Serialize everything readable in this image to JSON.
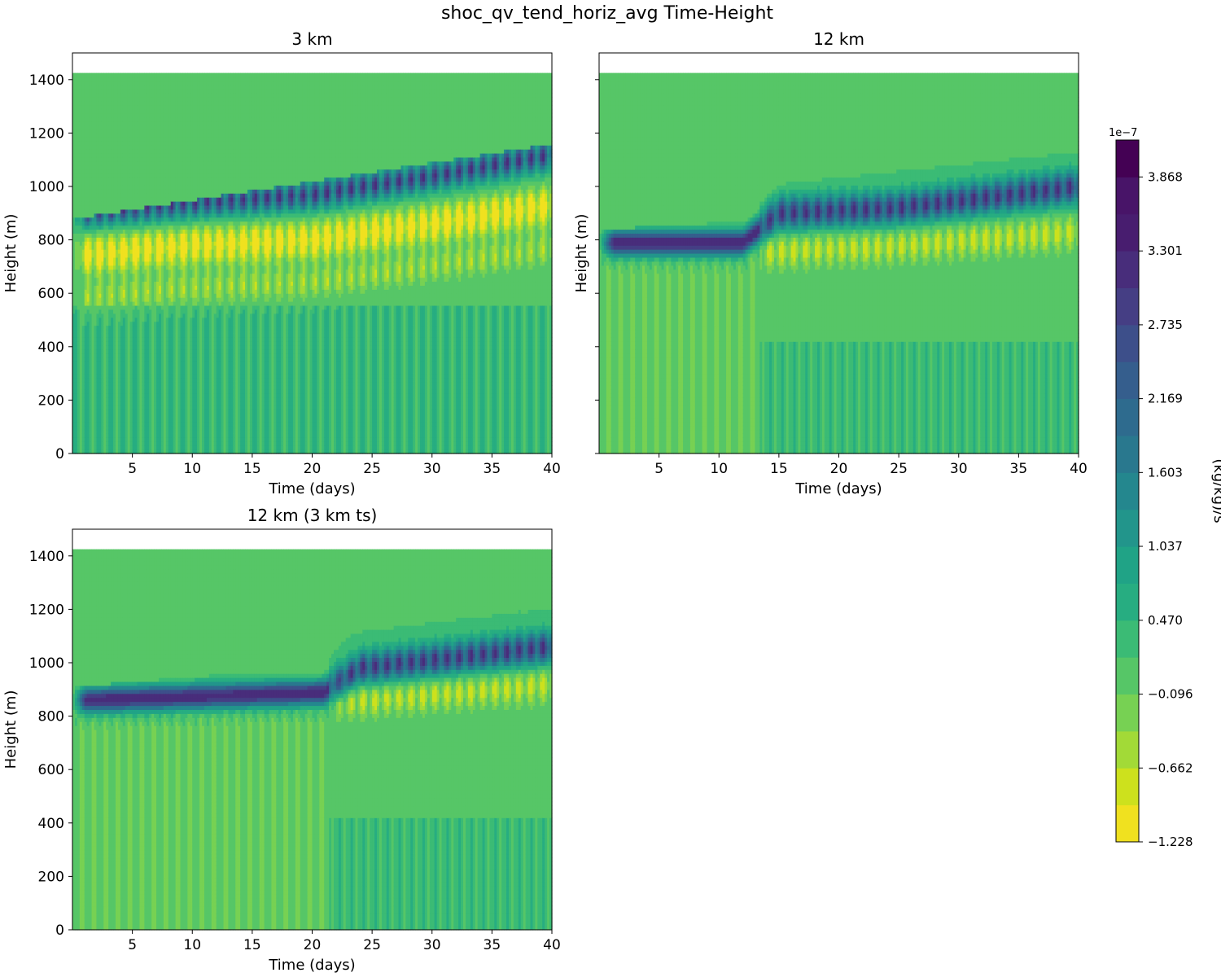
{
  "figure_title": "shoc_qv_tend_horiz_avg Time-Height",
  "colorbar": {
    "label": "(kg/kg)/s",
    "exponent": "1e−7",
    "ticks": [
      "3.868",
      "3.301",
      "2.735",
      "2.169",
      "1.603",
      "1.037",
      "0.470",
      "−0.096",
      "−0.662",
      "−1.228"
    ],
    "tick_values": [
      3.868,
      3.301,
      2.735,
      2.169,
      1.603,
      1.037,
      0.47,
      -0.096,
      -0.662,
      -1.228
    ],
    "range": [
      -1.228,
      4.151
    ],
    "levels": 19,
    "colors": [
      "#f0e11f",
      "#cde11d",
      "#a2da37",
      "#77d153",
      "#56c667",
      "#3bbb75",
      "#27ad81",
      "#20a386",
      "#22958b",
      "#24878e",
      "#29788e",
      "#2e6b8e",
      "#355e8d",
      "#3d4f8a",
      "#453e84",
      "#482d7b",
      "#481d6f",
      "#481468",
      "#440154"
    ]
  },
  "chart_data": [
    {
      "type": "heatmap",
      "title": "3 km",
      "xlabel": "Time (days)",
      "ylabel": "Height (m)",
      "xlim": [
        0,
        40
      ],
      "ylim": [
        0,
        1500
      ],
      "xticks": [
        "5",
        "10",
        "15",
        "20",
        "25",
        "30",
        "35",
        "40"
      ],
      "yticks": [
        "0",
        "200",
        "400",
        "600",
        "800",
        "1000",
        "1200",
        "1400"
      ],
      "data_top_m": 1425,
      "features": {
        "boundary_layer_top_m": [
          [
            0,
            820
          ],
          [
            40,
            1100
          ]
        ],
        "positive_band_m": [
          [
            0,
            900
          ],
          [
            10,
            940
          ],
          [
            20,
            970
          ],
          [
            30,
            1040
          ],
          [
            40,
            1120
          ]
        ],
        "negative_band_m": [
          [
            0,
            740
          ],
          [
            10,
            780
          ],
          [
            20,
            800
          ],
          [
            30,
            860
          ],
          [
            40,
            930
          ]
        ],
        "cycle_period_days": 1
      }
    },
    {
      "type": "heatmap",
      "title": "12 km",
      "xlabel": "Time (days)",
      "ylabel": "Height (m)",
      "xlim": [
        0,
        40
      ],
      "ylim": [
        0,
        1500
      ],
      "xticks": [
        "5",
        "10",
        "15",
        "20",
        "25",
        "30",
        "35",
        "40"
      ],
      "yticks": [
        "0",
        "200",
        "400",
        "600",
        "800",
        "1000",
        "1200",
        "1400"
      ],
      "data_top_m": 1425,
      "features": {
        "boundary_layer_top_m": [
          [
            0,
            780
          ],
          [
            12,
            810
          ],
          [
            15,
            950
          ],
          [
            40,
            1070
          ]
        ],
        "positive_band_m": [
          [
            0,
            790
          ],
          [
            12,
            790
          ],
          [
            15,
            900
          ],
          [
            25,
            920
          ],
          [
            40,
            1000
          ]
        ],
        "negative_band_m": [
          [
            15,
            760
          ],
          [
            25,
            780
          ],
          [
            40,
            830
          ]
        ],
        "regime_shift_day": 13.5,
        "cycle_period_days": 1
      }
    },
    {
      "type": "heatmap",
      "title": "12 km (3 km ts)",
      "xlabel": "Time (days)",
      "ylabel": "Height (m)",
      "xlim": [
        0,
        40
      ],
      "ylim": [
        0,
        1500
      ],
      "xticks": [
        "5",
        "10",
        "15",
        "20",
        "25",
        "30",
        "35",
        "40"
      ],
      "yticks": [
        "0",
        "200",
        "400",
        "600",
        "800",
        "1000",
        "1200",
        "1400"
      ],
      "data_top_m": 1425,
      "features": {
        "boundary_layer_top_m": [
          [
            0,
            850
          ],
          [
            21,
            930
          ],
          [
            23,
            1050
          ],
          [
            40,
            1150
          ]
        ],
        "positive_band_m": [
          [
            0,
            860
          ],
          [
            21,
            890
          ],
          [
            24,
            980
          ],
          [
            40,
            1060
          ]
        ],
        "negative_band_m": [
          [
            23,
            860
          ],
          [
            40,
            920
          ]
        ],
        "regime_shift_day": 21.5,
        "cycle_period_days": 1
      }
    }
  ]
}
